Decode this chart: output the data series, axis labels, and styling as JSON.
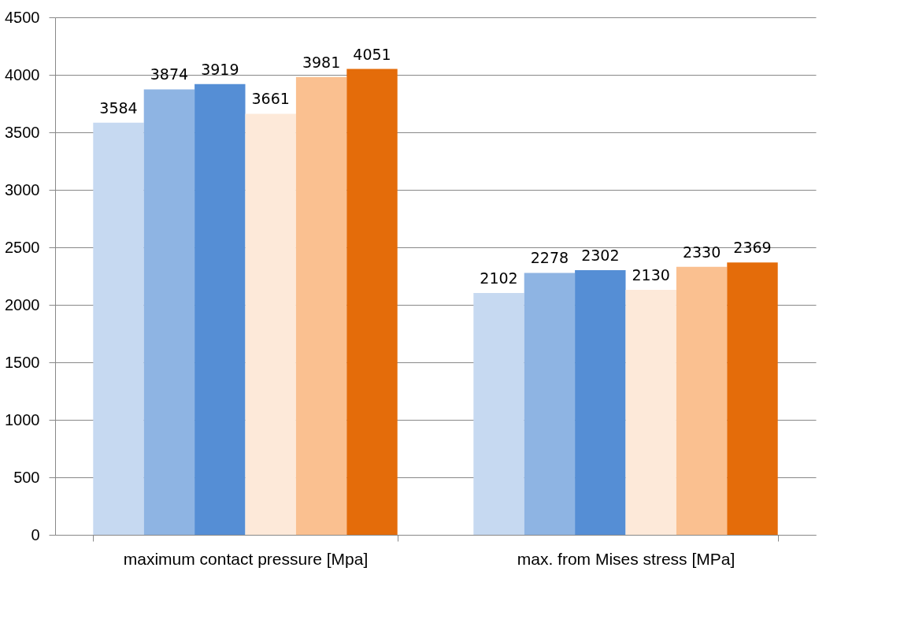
{
  "chart_data": {
    "type": "bar",
    "categories": [
      "maximum contact pressure [Mpa]",
      "max. from Mises stress [MPa]"
    ],
    "series": [
      {
        "color": "#c6d9f1",
        "values": [
          3584,
          2102
        ]
      },
      {
        "color": "#8eb4e3",
        "values": [
          3874,
          2278
        ]
      },
      {
        "color": "#558ed5",
        "values": [
          3919,
          2302
        ]
      },
      {
        "color": "#fde9d9",
        "values": [
          3661,
          2130
        ]
      },
      {
        "color": "#fac090",
        "values": [
          3981,
          2330
        ]
      },
      {
        "color": "#e46c0a",
        "values": [
          4051,
          2369
        ]
      }
    ],
    "ylim": [
      0,
      4500
    ],
    "yticks": [
      0,
      500,
      1000,
      1500,
      2000,
      2500,
      3000,
      3500,
      4000,
      4500
    ],
    "grid": "y",
    "data_labels": true,
    "legend": false
  }
}
